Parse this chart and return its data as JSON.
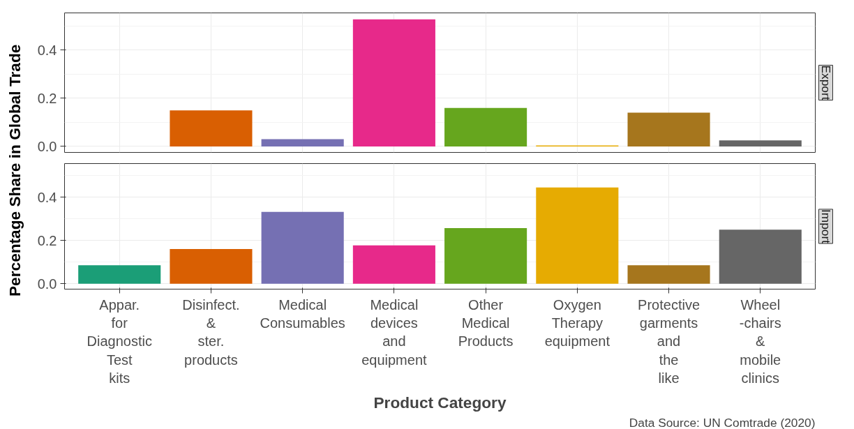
{
  "chart_data": [
    {
      "type": "bar",
      "title": "Export",
      "ylabel": "Percentage Share in Global Trade",
      "categories": [
        null,
        null,
        null,
        null,
        null,
        null,
        null,
        null
      ],
      "values": [
        0,
        0.15,
        0.03,
        0.528,
        0.16,
        0.004,
        0.14,
        0.025
      ],
      "colors": [
        "#1b9e77",
        "#d95f02",
        "#7570b3",
        "#e7298a",
        "#66a61e",
        "#e6ab02",
        "#a6761d",
        "#666666"
      ],
      "ylim": [
        -0.025,
        0.555
      ],
      "yticks": [
        {
          "value": 0,
          "label": "0.0"
        },
        {
          "value": 0.2,
          "label": "0.2"
        },
        {
          "value": 0.4,
          "label": "0.4"
        }
      ],
      "grid": true,
      "tick_labels": "y"
    },
    {
      "type": "bar",
      "title": "Import",
      "xlabel": "Product Category",
      "annotations": [
        "Data Source: UN Comtrade (2020)"
      ],
      "categories": [
        "Appar.\nfor\nDiagnostic\nTest\nkits",
        "Disinfect.\n&\nster.\nproducts",
        "Medical\nConsumables",
        "Medical\ndevices\nand\nequipment",
        "Other\nMedical\nProducts",
        "Oxygen\nTherapy\nequipment",
        "Protective\ngarments\nand\nthe\nlike",
        "Wheel\n-chairs\n&\nmobile\nclinics"
      ],
      "values": [
        0.085,
        0.16,
        0.332,
        0.177,
        0.257,
        0.445,
        0.085,
        0.25
      ],
      "colors": [
        "#1b9e77",
        "#d95f02",
        "#7570b3",
        "#e7298a",
        "#66a61e",
        "#e6ab02",
        "#a6761d",
        "#666666"
      ],
      "ylim": [
        -0.025,
        0.555
      ],
      "yticks": [
        {
          "value": 0,
          "label": "0.0"
        },
        {
          "value": 0.2,
          "label": "0.2"
        },
        {
          "value": 0.4,
          "label": "0.4"
        }
      ],
      "grid": true
    }
  ]
}
